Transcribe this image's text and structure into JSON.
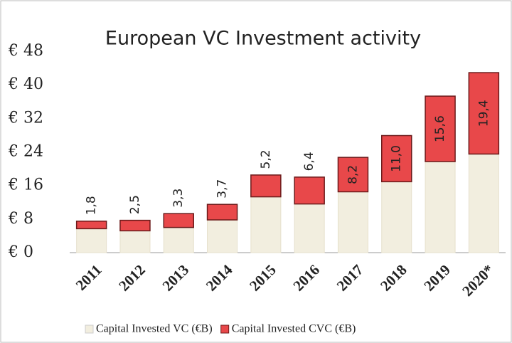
{
  "chart_data": {
    "type": "stacked-bar",
    "title": "European VC Investment activity",
    "categories": [
      "2011",
      "2012",
      "2013",
      "2014",
      "2015",
      "2016",
      "2017",
      "2018",
      "2019",
      "2020*"
    ],
    "series": [
      {
        "name": "Capital Invested VC (€B)",
        "color": "#f2eedf",
        "values": [
          5.7,
          5.2,
          6.0,
          7.8,
          13.3,
          11.6,
          14.5,
          16.9,
          21.7,
          23.5
        ]
      },
      {
        "name": "Capital Invested CVC (€B)",
        "color": "#e8484a",
        "values": [
          1.8,
          2.5,
          3.3,
          3.7,
          5.2,
          6.4,
          8.2,
          11.0,
          15.6,
          19.4
        ],
        "value_labels": [
          "1,8",
          "2,5",
          "3,3",
          "3,7",
          "5,2",
          "6,4",
          "8,2",
          "11,0",
          "15,6",
          "19,4"
        ]
      }
    ],
    "ylim": [
      0,
      48
    ],
    "yticks": [
      {
        "value": 0,
        "label": "€ 0"
      },
      {
        "value": 8,
        "label": "€ 8"
      },
      {
        "value": 16,
        "label": "€ 16"
      },
      {
        "value": 24,
        "label": "€ 24"
      },
      {
        "value": 32,
        "label": "€ 32"
      },
      {
        "value": 40,
        "label": "€ 40"
      },
      {
        "value": 48,
        "label": "€ 48"
      }
    ]
  }
}
